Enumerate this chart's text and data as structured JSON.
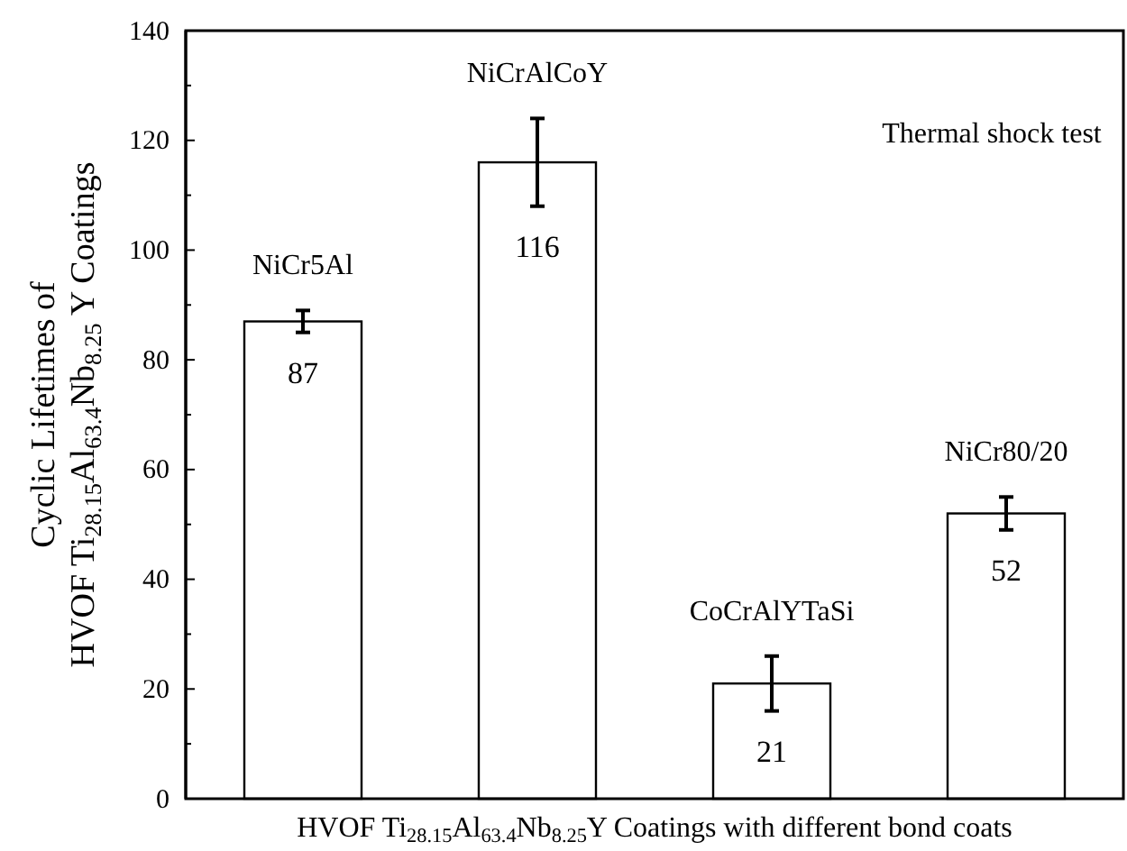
{
  "chart_data": {
    "type": "bar",
    "categories": [
      "NiCr5Al",
      "NiCrAlCoY",
      "CoCrAlYTaSi",
      "NiCr80/20"
    ],
    "values": [
      87,
      116,
      21,
      52
    ],
    "errors": [
      2,
      8,
      5,
      3
    ],
    "color": "#ffffff",
    "data_labels": true,
    "xlabel": "HVOF Ti$_{28.15}$Al$_{63.4}$Nb$_{8.25}$Y Coatings with different bond coats",
    "ylabel": "Cyclic Lifetimes of\nHVOF Ti$_{28.15}$Al$_{63.4}$Nb$_{8.25}$ Y Coatings",
    "annotations": [
      "Thermal shock test"
    ],
    "ylim": [
      0,
      140
    ],
    "yticks": [
      0,
      {
        "value": 10,
        "label": null
      },
      20,
      {
        "value": 30,
        "label": null
      },
      40,
      {
        "value": 50,
        "label": null
      },
      60,
      {
        "value": 70,
        "label": null
      },
      80,
      {
        "value": 90,
        "label": null
      },
      100,
      {
        "value": 110,
        "label": null
      },
      120,
      {
        "value": 130,
        "label": null
      },
      140
    ],
    "grid": false
  }
}
